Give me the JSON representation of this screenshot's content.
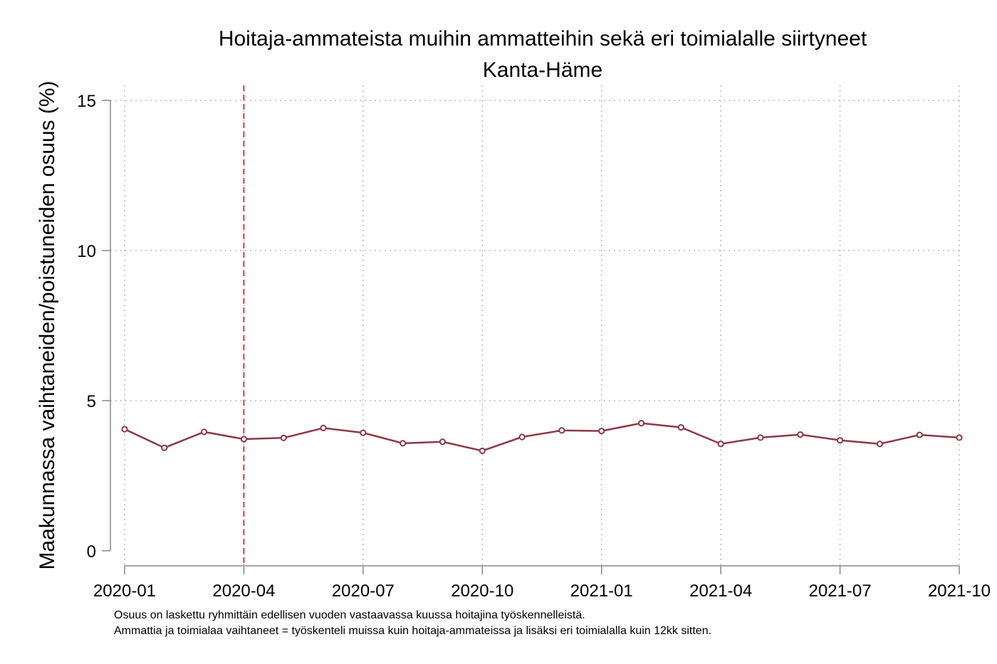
{
  "chart_data": {
    "type": "line",
    "title": "Hoitaja-ammateista muihin ammatteihin sekä eri toimialalle siirtyneet",
    "subtitle": "Kanta-Häme",
    "xlabel": "",
    "ylabel": "Maakunnassa vaihtaneiden/poistuneiden osuus (%)",
    "ylim": [
      -0.5,
      15.5
    ],
    "yticks": [
      "0",
      "5",
      "10",
      "15"
    ],
    "xticks": [
      "2020-01",
      "2020-04",
      "2020-07",
      "2020-10",
      "2021-01",
      "2021-04",
      "2021-07",
      "2021-10"
    ],
    "x": [
      "2020-01",
      "2020-02",
      "2020-03",
      "2020-04",
      "2020-05",
      "2020-06",
      "2020-07",
      "2020-08",
      "2020-09",
      "2020-10",
      "2020-11",
      "2020-12",
      "2021-01",
      "2021-02",
      "2021-03",
      "2021-04",
      "2021-05",
      "2021-06",
      "2021-07",
      "2021-08",
      "2021-09",
      "2021-10"
    ],
    "series": [
      {
        "values": [
          4.05,
          3.43,
          3.96,
          3.72,
          3.76,
          4.09,
          3.93,
          3.58,
          3.63,
          3.33,
          3.79,
          4.01,
          3.99,
          4.25,
          4.11,
          3.56,
          3.77,
          3.87,
          3.68,
          3.56,
          3.86,
          3.77
        ],
        "color": "#8b3a46"
      }
    ],
    "reference_line": {
      "x": "2020-04",
      "style": "dashed",
      "color": "#e0262b"
    },
    "grid": true,
    "notes": [
      "Osuus on laskettu ryhmittäin edellisen vuoden vastaavassa kuussa hoitajina työskennelleistä.",
      "Ammattia ja toimialaa vaihtaneet = työskenteli muissa kuin hoitaja-ammateissa ja lisäksi eri toimialalla kuin 12kk sitten."
    ]
  }
}
